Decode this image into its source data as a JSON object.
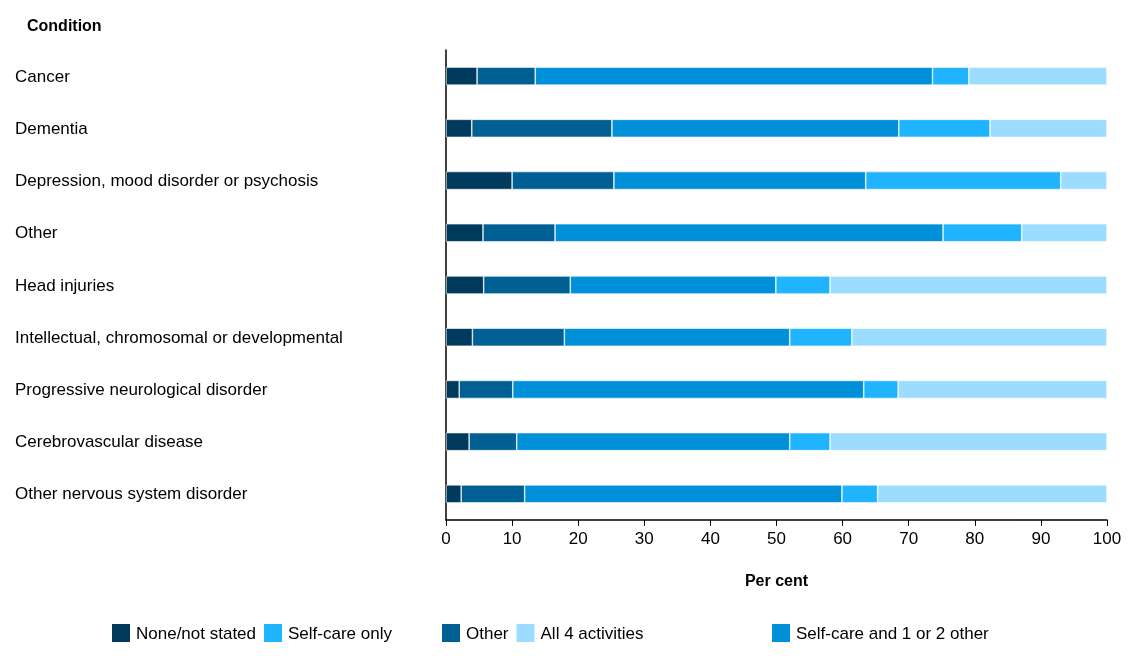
{
  "chart_data": {
    "type": "bar",
    "orientation": "horizontal",
    "stacked": true,
    "ylabel": "Condition",
    "xlabel": "Per cent",
    "categories": [
      "Cancer",
      "Dementia",
      "Depression, mood disorder or psychosis",
      "Other",
      "Head injuries",
      "Intellectual, chromosomal or developmental",
      "Progressive neurological disorder",
      "Cerebrovascular disease",
      "Other nervous system disorder"
    ],
    "series": [
      {
        "name": "None/not stated",
        "color": "#003a5c",
        "values": [
          4.7,
          3.9,
          10.0,
          5.6,
          5.7,
          4.0,
          2.0,
          3.5,
          2.3
        ]
      },
      {
        "name": "Other",
        "color": "#005f93",
        "values": [
          8.8,
          21.2,
          15.4,
          10.9,
          13.1,
          13.9,
          8.1,
          7.2,
          9.6
        ]
      },
      {
        "name": "Self-care and 1 or 2 other",
        "color": "#0090da",
        "values": [
          60.1,
          43.4,
          38.1,
          58.7,
          31.1,
          34.1,
          53.1,
          41.3,
          48.0
        ]
      },
      {
        "name": "Self-care only",
        "color": "#20b4ff",
        "values": [
          5.5,
          13.8,
          29.5,
          11.9,
          8.2,
          9.4,
          5.2,
          6.1,
          5.4
        ]
      },
      {
        "name": "All 4 activities",
        "color": "#9bdcff",
        "values": [
          20.9,
          17.7,
          7.0,
          12.9,
          41.9,
          38.6,
          31.6,
          41.9,
          34.7
        ]
      }
    ],
    "xlim": [
      0,
      100
    ],
    "xticks": [
      0,
      10,
      20,
      30,
      40,
      50,
      60,
      70,
      80,
      90,
      100
    ],
    "grid": false,
    "legend": "bottom"
  }
}
